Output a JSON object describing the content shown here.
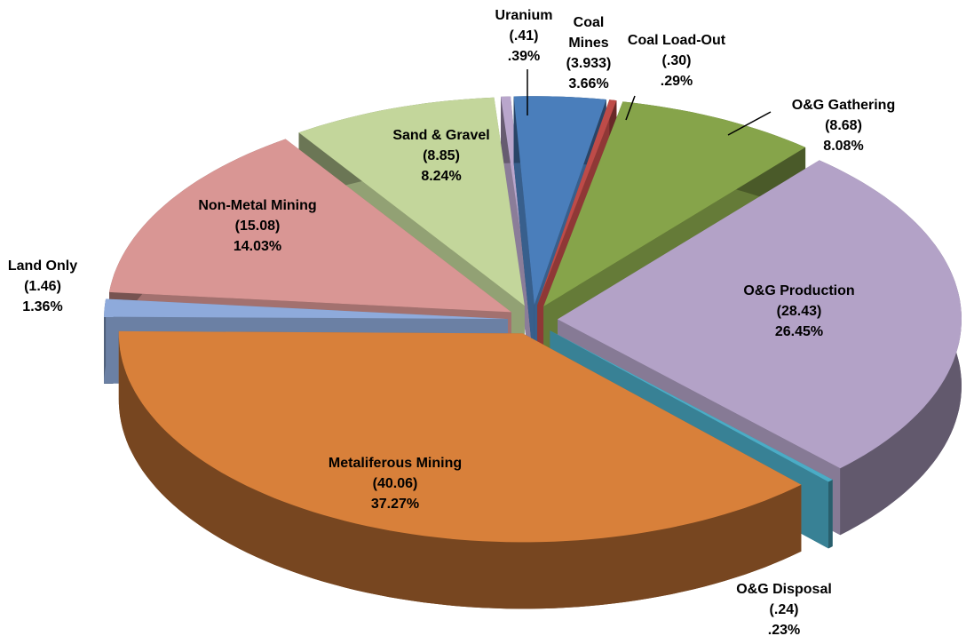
{
  "chart_data": {
    "type": "pie3d",
    "categories": [
      "Uranium",
      "Coal Mines",
      "Coal Load-Out",
      "O&G Gathering",
      "O&G Production",
      "O&G Disposal",
      "Metaliferous Mining",
      "Land Only",
      "Non-Metal Mining",
      "Sand & Gravel"
    ],
    "values": [
      0.41,
      3.933,
      0.3,
      8.68,
      28.43,
      0.24,
      40.06,
      1.46,
      15.08,
      8.85
    ],
    "value_labels": [
      "(.41)",
      "(3.933)",
      "(.30)",
      "(8.68)",
      "(28.43)",
      "(.24)",
      "(40.06)",
      "(1.46)",
      "(15.08)",
      "(8.85)"
    ],
    "percents": [
      0.39,
      3.66,
      0.29,
      8.08,
      26.45,
      0.23,
      37.27,
      1.36,
      14.03,
      8.24
    ],
    "percent_labels": [
      ".39%",
      "3.66%",
      ".29%",
      "8.08%",
      "26.45%",
      ".23%",
      "37.27%",
      "1.36%",
      "14.03%",
      "8.24%"
    ],
    "colors": [
      "#b9a6cc",
      "#4a7ebb",
      "#be4b48",
      "#86a44a",
      "#b3a2c7",
      "#4bacc6",
      "#d8803a",
      "#8eaadb",
      "#d99694",
      "#c3d69b"
    ]
  }
}
